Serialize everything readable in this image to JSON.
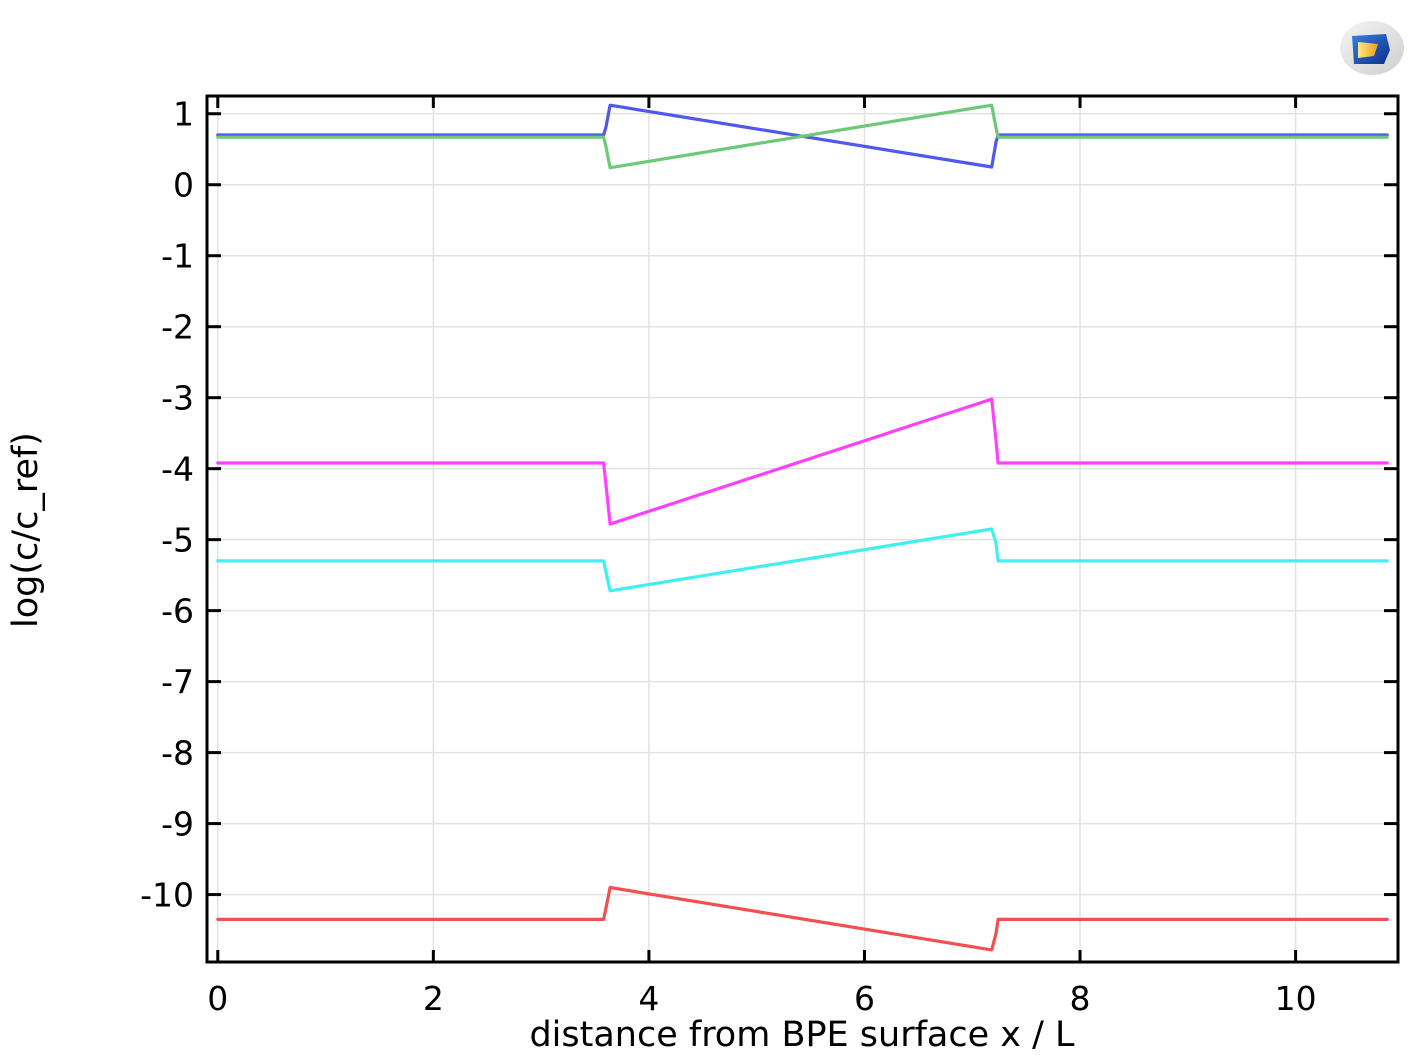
{
  "chart_data": {
    "type": "line",
    "title": "",
    "xlabel": "distance from BPE surface x / L",
    "ylabel": "log(c/c_ref)",
    "xlim": [
      -0.1,
      10.95
    ],
    "ylim": [
      -10.95,
      1.25
    ],
    "xticks": [
      0,
      2,
      4,
      6,
      8,
      10
    ],
    "yticks": [
      1,
      0,
      -1,
      -2,
      -3,
      -4,
      -5,
      -6,
      -7,
      -8,
      -9,
      -10
    ],
    "grid": true,
    "legend": "none",
    "series": [
      {
        "color": "#5058ee",
        "x": [
          0,
          3.58,
          3.6,
          3.64,
          7.18,
          7.22,
          7.24,
          10.85
        ],
        "y": [
          0.7,
          0.7,
          0.8,
          1.12,
          0.25,
          0.6,
          0.7,
          0.7
        ]
      },
      {
        "color": "#6cc97a",
        "x": [
          0,
          3.58,
          3.6,
          3.64,
          7.18,
          7.22,
          7.24,
          10.85
        ],
        "y": [
          0.67,
          0.67,
          0.55,
          0.24,
          1.12,
          0.8,
          0.67,
          0.67
        ]
      },
      {
        "color": "#ff40ff",
        "x": [
          0,
          3.58,
          3.6,
          3.64,
          7.18,
          7.22,
          7.24,
          10.85
        ],
        "y": [
          -3.92,
          -3.92,
          -4.2,
          -4.78,
          -3.02,
          -3.6,
          -3.92,
          -3.92
        ]
      },
      {
        "color": "#40f0f0",
        "x": [
          0,
          3.58,
          3.6,
          3.64,
          7.18,
          7.22,
          7.24,
          10.85
        ],
        "y": [
          -5.3,
          -5.3,
          -5.45,
          -5.72,
          -4.85,
          -5.05,
          -5.3,
          -5.3
        ]
      },
      {
        "color": "#f05050",
        "x": [
          0,
          3.58,
          3.6,
          3.64,
          7.18,
          7.22,
          7.24,
          10.85
        ],
        "y": [
          -10.35,
          -10.35,
          -10.2,
          -9.9,
          -10.78,
          -10.55,
          -10.35,
          -10.35
        ]
      }
    ]
  }
}
